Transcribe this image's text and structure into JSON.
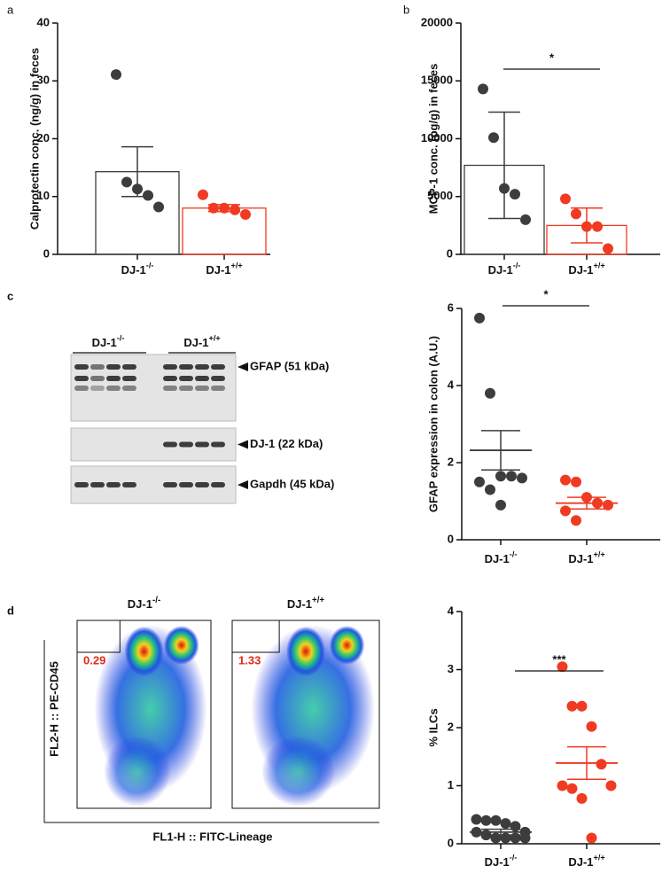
{
  "panel_labels": [
    "a",
    "b",
    "c",
    "d"
  ],
  "chart_data": [
    {
      "type": "bar_scatter",
      "ylabel": "Calprotectin conc. (ng/g) in feces",
      "ylim": [
        0,
        40
      ],
      "yticks": [
        0,
        10,
        20,
        30,
        40
      ],
      "groups": [
        {
          "label": "DJ-1",
          "sup": "-/-",
          "color": "#3d3d3d",
          "points": [
            31.1,
            12.5,
            11.3,
            10.2,
            8.2
          ],
          "mean": 14.3,
          "error": 4.3
        },
        {
          "label": "DJ-1",
          "sup": "+/+",
          "color": "#f03a22",
          "points": [
            10.3,
            8.0,
            8.0,
            7.7,
            6.9
          ],
          "mean": 8.0,
          "error": 0.6
        }
      ]
    },
    {
      "type": "bar_scatter",
      "ylabel": "MCP-1 conc. (pg/g) in feces",
      "ylim": [
        0,
        20000
      ],
      "yticks": [
        0,
        5000,
        10000,
        15000,
        20000
      ],
      "significance": "*",
      "groups": [
        {
          "label": "DJ-1",
          "sup": "-/-",
          "color": "#3d3d3d",
          "points": [
            14300,
            10100,
            5700,
            5200,
            3000
          ],
          "mean": 7700,
          "error": 4600
        },
        {
          "label": "DJ-1",
          "sup": "+/+",
          "color": "#f03a22",
          "points": [
            4800,
            3500,
            2400,
            2400,
            500
          ],
          "mean": 2500,
          "error": 1500
        }
      ]
    },
    {
      "type": "dot_scatter",
      "ylabel": "GFAP expression in colon (A.U.)",
      "ylim": [
        0,
        6
      ],
      "yticks": [
        0,
        2,
        4,
        6
      ],
      "significance": "*",
      "groups": [
        {
          "label": "DJ-1",
          "sup": "-/-",
          "color": "#3d3d3d",
          "points": [
            5.75,
            3.8,
            1.65,
            1.65,
            1.6,
            1.5,
            1.3,
            0.9
          ],
          "mean": 2.32,
          "error": 0.51
        },
        {
          "label": "DJ-1",
          "sup": "+/+",
          "color": "#f03a22",
          "points": [
            1.55,
            1.5,
            1.1,
            0.95,
            0.9,
            0.75,
            0.5
          ],
          "mean": 0.95,
          "error": 0.15
        }
      ]
    },
    {
      "type": "dot_scatter",
      "ylabel": "% ILCs",
      "ylim": [
        0,
        4
      ],
      "yticks": [
        0,
        1,
        2,
        3,
        4
      ],
      "significance": "***",
      "groups": [
        {
          "label": "DJ-1",
          "sup": "-/-",
          "color": "#3d3d3d",
          "points": [
            0.42,
            0.4,
            0.4,
            0.35,
            0.3,
            0.2,
            0.2,
            0.15,
            0.1,
            0.1,
            0.1,
            0.1
          ],
          "mean": 0.2,
          "error": 0.05
        },
        {
          "label": "DJ-1",
          "sup": "+/+",
          "color": "#f03a22",
          "points": [
            3.05,
            2.37,
            2.37,
            2.02,
            1.37,
            1.0,
            1.0,
            0.95,
            0.78,
            0.1
          ],
          "mean": 1.39,
          "error": 0.28
        }
      ]
    }
  ],
  "blot": {
    "groups": [
      {
        "label": "DJ-1",
        "sup": "-/-"
      },
      {
        "label": "DJ-1",
        "sup": "+/+"
      }
    ],
    "bands": [
      "GFAP (51 kDa)",
      "DJ-1 (22 kDa)",
      "Gapdh (45 kDa)"
    ]
  },
  "flow": {
    "plots": [
      {
        "label": "DJ-1",
        "sup": "-/-",
        "gate": "0.29"
      },
      {
        "label": "DJ-1",
        "sup": "+/+",
        "gate": "1.33"
      }
    ],
    "ylabel": "FL2-H :: PE-CD45",
    "xlabel": "FL1-H :: FITC-Lineage"
  }
}
